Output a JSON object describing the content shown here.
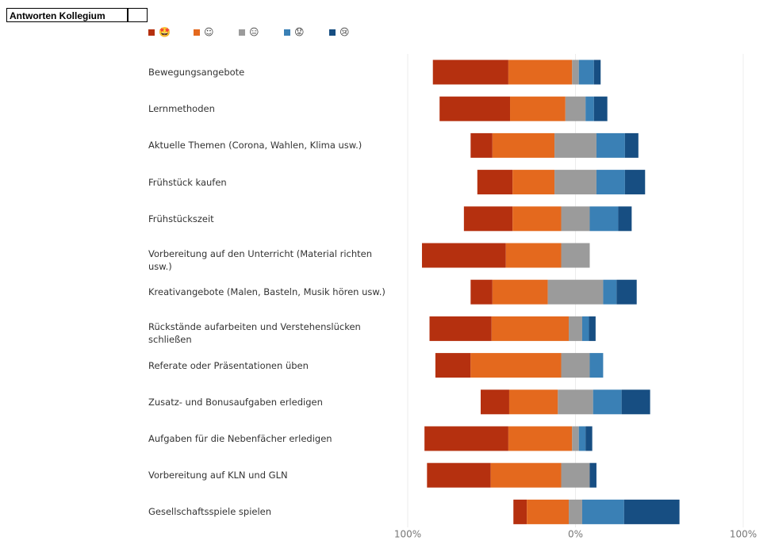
{
  "chart_data": {
    "type": "diverging_bar",
    "title": "Antworten Kollegium",
    "categories": [
      "Bewegungsangebote",
      "Lernmethoden",
      "Aktuelle Themen (Corona, Wahlen, Klima usw.)",
      "Frühstück kaufen",
      "Frühstückszeit",
      "Vorbereitung auf den Unterricht (Material richten usw.)",
      "Kreativangebote (Malen, Basteln, Musik hören usw.)",
      "Rückstände aufarbeiten und Verstehenslücken schließen",
      "Referate oder Präsentationen üben",
      "Zusatz- und Bonusaufgaben erledigen",
      "Aufgaben für die Nebenfächer erledigen",
      "Vorbereitung auf KLN und GLN",
      "Gesellschaftsspiele spielen"
    ],
    "series": [
      {
        "name": "🤩",
        "color": "#b5300f",
        "values": [
          45,
          42,
          13,
          21,
          29,
          50,
          13,
          37,
          21,
          17,
          50,
          38,
          8
        ]
      },
      {
        "name": "☺",
        "color": "#e4691e",
        "values": [
          38,
          33,
          37,
          25,
          29,
          33,
          33,
          46,
          54,
          29,
          38,
          42,
          25
        ]
      },
      {
        "name": "😑",
        "color": "#9b9b9b",
        "values": [
          4,
          12,
          25,
          25,
          17,
          17,
          33,
          8,
          17,
          21,
          4,
          17,
          8
        ]
      },
      {
        "name": "😟",
        "color": "#3a80b5",
        "values": [
          9,
          5,
          17,
          17,
          17,
          0,
          8,
          4,
          8,
          17,
          4,
          0,
          25
        ]
      },
      {
        "name": "😢",
        "color": "#174e82",
        "values": [
          4,
          8,
          8,
          12,
          8,
          0,
          12,
          4,
          0,
          17,
          4,
          4,
          33
        ]
      }
    ],
    "xlim": [
      -100,
      100
    ],
    "xticks": [
      {
        "value": -100,
        "label": "100%"
      },
      {
        "value": 0,
        "label": "0%"
      },
      {
        "value": 100,
        "label": "100%"
      }
    ],
    "grid": true
  }
}
